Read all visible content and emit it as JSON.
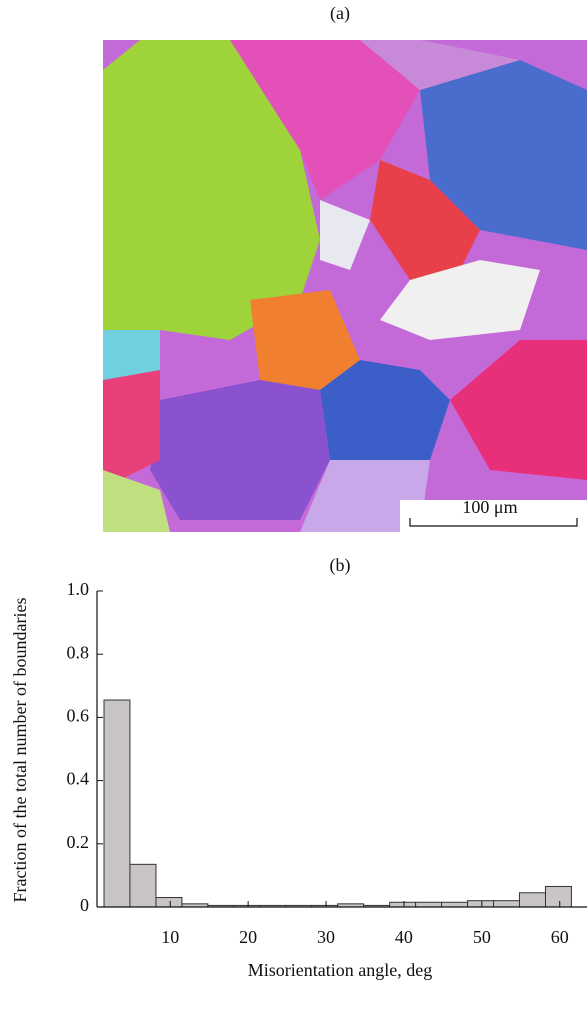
{
  "panel_a": {
    "label": "(a)",
    "scale_bar": "100 μm"
  },
  "chart_data": {
    "type": "histogram",
    "title": "(b)",
    "xlabel": "Misorientation angle, deg",
    "ylabel": "Fraction of the total number of boundaries",
    "bins": [
      1.5,
      4.83,
      8.17,
      11.5,
      14.83,
      18.17,
      21.5,
      24.83,
      28.17,
      31.5,
      34.83,
      38.17,
      41.5,
      44.83,
      48.17,
      51.5,
      54.83,
      58.17,
      61.5
    ],
    "values": [
      0.655,
      0.135,
      0.03,
      0.01,
      0.005,
      0.005,
      0.005,
      0.005,
      0.005,
      0.01,
      0.005,
      0.015,
      0.015,
      0.015,
      0.02,
      0.02,
      0.045,
      0.065
    ],
    "color": "#c9c5c5",
    "xlim": [
      0.6,
      63.5
    ],
    "xticks": [
      10,
      20,
      30,
      40,
      50,
      60
    ],
    "ylim": [
      0,
      1
    ],
    "yticks": [
      0,
      0.2,
      0.4,
      0.6,
      0.8,
      {
        "value": 1,
        "label": "1.0"
      }
    ]
  }
}
